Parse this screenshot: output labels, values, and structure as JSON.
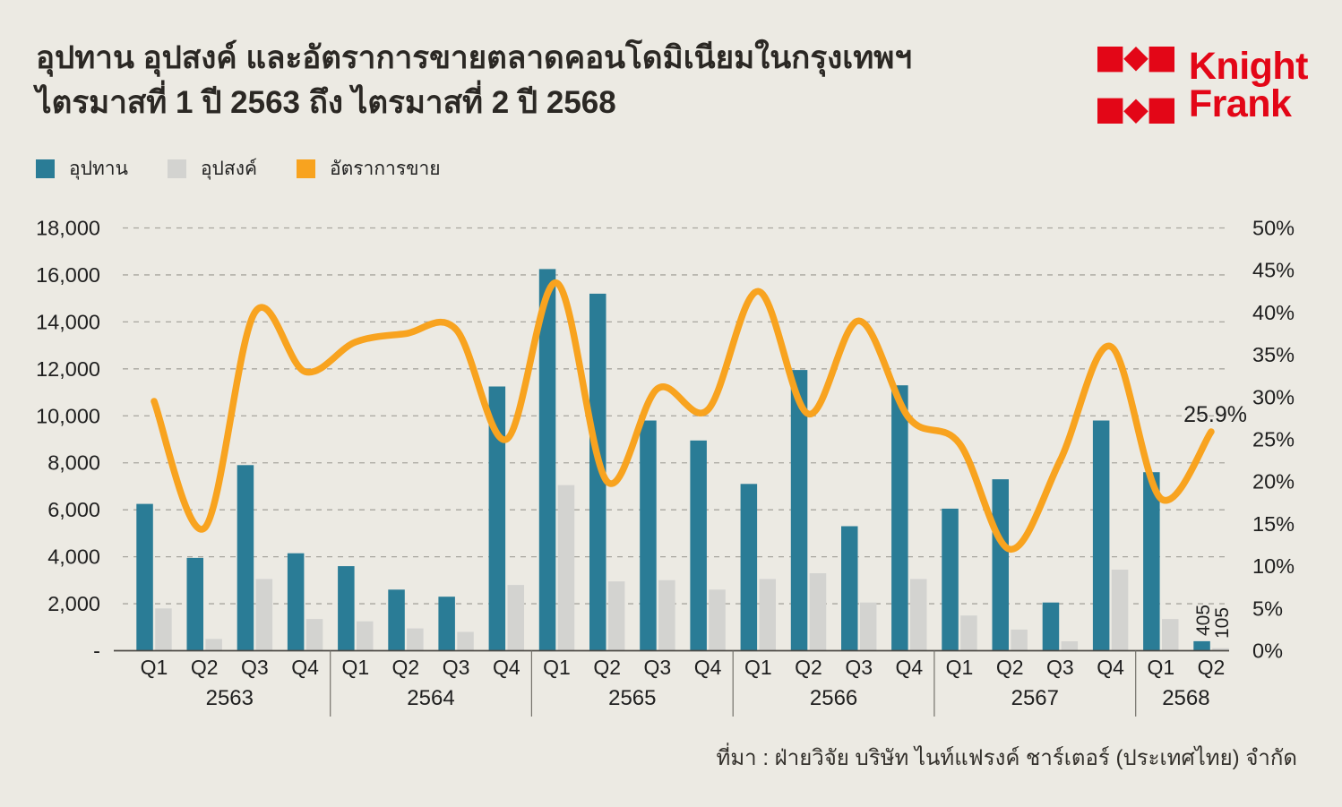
{
  "header": {
    "title_line1": "อุปทาน อุปสงค์ และอัตราการขายตลาดคอนโดมิเนียมในกรุงเทพฯ",
    "title_line2": "ไตรมาสที่ 1 ปี 2563 ถึง ไตรมาสที่ 2 ปี 2568"
  },
  "logo": {
    "line1": "Knight",
    "line2": "Frank"
  },
  "legend": {
    "items": [
      {
        "label": "อุปทาน",
        "color": "#2A7C96"
      },
      {
        "label": "อุปสงค์",
        "color": "#D3D3D0"
      },
      {
        "label": "อัตราการขาย",
        "color": "#F8A31F"
      }
    ]
  },
  "colors": {
    "background": "#ECEAE3",
    "supply_teal": "#2A7C96",
    "demand_gray": "#D3D3D0",
    "rate_orange": "#F8A31F",
    "brand_red": "#E30617",
    "gridline": "#A8A69F",
    "axis_line": "#4c4944",
    "separator": "#75726b",
    "text_dark": "#1f1f1f"
  },
  "chart_data": {
    "type": "bar+line",
    "grid": "horizontal-dashed",
    "legend_position": "top-left",
    "years": [
      {
        "label": "2563",
        "quarters": [
          "Q1",
          "Q2",
          "Q3",
          "Q4"
        ]
      },
      {
        "label": "2564",
        "quarters": [
          "Q1",
          "Q2",
          "Q3",
          "Q4"
        ]
      },
      {
        "label": "2565",
        "quarters": [
          "Q1",
          "Q2",
          "Q3",
          "Q4"
        ]
      },
      {
        "label": "2566",
        "quarters": [
          "Q1",
          "Q2",
          "Q3",
          "Q4"
        ]
      },
      {
        "label": "2567",
        "quarters": [
          "Q1",
          "Q2",
          "Q3",
          "Q4"
        ]
      },
      {
        "label": "2568",
        "quarters": [
          "Q1",
          "Q2"
        ]
      }
    ],
    "series": [
      {
        "name": "อุปทาน",
        "type": "bar",
        "axis": "left",
        "color": "#2A7C96",
        "values": [
          6250,
          3950,
          7900,
          4150,
          3600,
          2600,
          2300,
          11250,
          16250,
          15200,
          9800,
          8950,
          7100,
          11950,
          5300,
          11300,
          6050,
          7300,
          2050,
          9800,
          7600,
          405
        ]
      },
      {
        "name": "อุปสงค์",
        "type": "bar",
        "axis": "left",
        "color": "#D3D3D0",
        "values": [
          1800,
          500,
          3050,
          1350,
          1250,
          950,
          800,
          2800,
          7050,
          2950,
          3000,
          2600,
          3050,
          3300,
          2050,
          3050,
          1500,
          900,
          400,
          3450,
          1350,
          105
        ]
      },
      {
        "name": "อัตราการขาย",
        "type": "line",
        "axis": "right",
        "unit": "%",
        "color": "#F8A31F",
        "values": [
          29.5,
          14.5,
          40,
          33,
          36.5,
          37.5,
          38,
          25,
          43.5,
          20,
          31,
          28.5,
          42.5,
          28,
          39,
          27.5,
          24.5,
          12,
          22.5,
          36,
          18,
          25.9
        ]
      }
    ],
    "left_axis": {
      "min": 0,
      "max": 18000,
      "step": 2000,
      "labels": [
        "18,000",
        "16,000",
        "14,000",
        "12,000",
        "10,000",
        "8,000",
        "6,000",
        "4,000",
        "2,000",
        "-"
      ]
    },
    "right_axis": {
      "min": 0,
      "max": 50,
      "step": 5,
      "labels": [
        "50%",
        "45%",
        "40%",
        "35%",
        "30%",
        "25%",
        "20%",
        "15%",
        "10%",
        "5%",
        "0%"
      ]
    },
    "annotations": {
      "line_end_label": "25.9%",
      "last_supply_value_label": "405",
      "last_demand_value_label": "105"
    }
  },
  "source": "ที่มา : ฝ่ายวิจัย บริษัท ไนท์แฟรงค์ ชาร์เตอร์ (ประเทศไทย) จำกัด"
}
